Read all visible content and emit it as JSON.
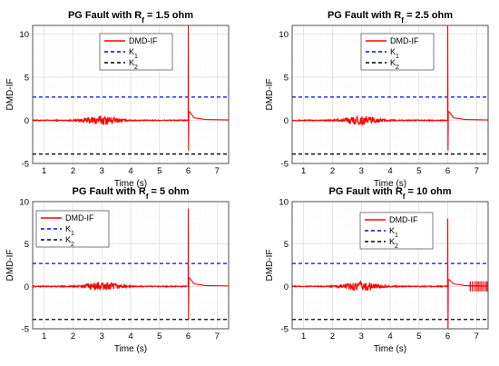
{
  "chart_data": [
    {
      "type": "line",
      "title": "PG Fault with R_f = 1.5 ohm",
      "title_parts": {
        "prefix": "PG Fault with R",
        "sub": "f",
        "suffix": " = 1.5 ohm"
      },
      "xlabel": "Time (s)",
      "ylabel": "DMD-IF",
      "xlim": [
        0.6,
        7.4
      ],
      "ylim": [
        -5,
        11
      ],
      "xticks": [
        "1",
        "2",
        "3",
        "4",
        "5",
        "6",
        "7"
      ],
      "yticks": [
        "-5",
        "0",
        "5",
        "10"
      ],
      "grid": true,
      "legend": "top-center",
      "series": [
        {
          "name": "DMD-IF",
          "color": "#ff0000",
          "style": "solid",
          "fault_time": 6.0,
          "spike_max": 11,
          "spike_min": -3.5,
          "noise_amplitude": 0.5,
          "after_spike_tail": [
            [
              6.05,
              1.0
            ],
            [
              6.2,
              0.3
            ],
            [
              6.6,
              0.1
            ],
            [
              7.4,
              0.05
            ]
          ]
        },
        {
          "name": "K",
          "name_sub": "1",
          "color": "#0000ff",
          "style": "dashed",
          "y": 2.7
        },
        {
          "name": "K",
          "name_sub": "2",
          "color": "#000000",
          "style": "dashed",
          "y": -3.9
        }
      ]
    },
    {
      "type": "line",
      "title": "PG Fault with R_f = 2.5 ohm",
      "title_parts": {
        "prefix": "PG Fault with R",
        "sub": "f",
        "suffix": " = 2.5 ohm"
      },
      "xlabel": "Time (s)",
      "ylabel": "DMD-IF",
      "xlim": [
        0.6,
        7.4
      ],
      "ylim": [
        -5,
        11
      ],
      "xticks": [
        "1",
        "2",
        "3",
        "4",
        "5",
        "6",
        "7"
      ],
      "yticks": [
        "-5",
        "0",
        "5",
        "10"
      ],
      "grid": true,
      "legend": "top-center",
      "series": [
        {
          "name": "DMD-IF",
          "color": "#ff0000",
          "style": "solid",
          "fault_time": 6.0,
          "spike_max": 11,
          "spike_min": -3.5,
          "noise_amplitude": 0.5,
          "after_spike_tail": [
            [
              6.05,
              1.0
            ],
            [
              6.2,
              0.3
            ],
            [
              6.6,
              0.1
            ],
            [
              7.4,
              0.05
            ]
          ]
        },
        {
          "name": "K",
          "name_sub": "1",
          "color": "#0000ff",
          "style": "dashed",
          "y": 2.7
        },
        {
          "name": "K",
          "name_sub": "2",
          "color": "#000000",
          "style": "dashed",
          "y": -3.9
        }
      ]
    },
    {
      "type": "line",
      "title": "PG Fault with R_f = 5 ohm",
      "title_parts": {
        "prefix": "PG Fault with R",
        "sub": "f",
        "suffix": " = 5 ohm"
      },
      "xlabel": "Time (s)",
      "ylabel": "DMD-IF",
      "xlim": [
        0.6,
        7.4
      ],
      "ylim": [
        -5,
        10
      ],
      "xticks": [
        "1",
        "2",
        "3",
        "4",
        "5",
        "6",
        "7"
      ],
      "yticks": [
        "-5",
        "0",
        "5",
        "10"
      ],
      "grid": true,
      "legend": "top-left",
      "series": [
        {
          "name": "DMD-IF",
          "color": "#ff0000",
          "style": "solid",
          "fault_time": 6.0,
          "spike_max": 9.2,
          "spike_min": -3.9,
          "noise_amplitude": 0.5,
          "after_spike_tail": [
            [
              6.05,
              1.0
            ],
            [
              6.2,
              0.3
            ],
            [
              6.6,
              0.1
            ],
            [
              7.4,
              0.05
            ]
          ]
        },
        {
          "name": "K",
          "name_sub": "1",
          "color": "#0000ff",
          "style": "dashed",
          "y": 2.7
        },
        {
          "name": "K",
          "name_sub": "2",
          "color": "#000000",
          "style": "dashed",
          "y": -3.9
        }
      ]
    },
    {
      "type": "line",
      "title": "PG Fault with R_f = 10 ohm",
      "title_parts": {
        "prefix": "PG Fault with R",
        "sub": "f",
        "suffix": " = 10 ohm"
      },
      "xlabel": "Time (s)",
      "ylabel": "DMD-IF",
      "xlim": [
        0.6,
        7.4
      ],
      "ylim": [
        -5,
        10
      ],
      "xticks": [
        "1",
        "2",
        "3",
        "4",
        "5",
        "6",
        "7"
      ],
      "yticks": [
        "-5",
        "0",
        "5",
        "10"
      ],
      "grid": true,
      "legend": "top-center",
      "series": [
        {
          "name": "DMD-IF",
          "color": "#ff0000",
          "style": "solid",
          "fault_time": 6.0,
          "spike_max": 8.0,
          "spike_min": -5.0,
          "noise_amplitude": 0.55,
          "after_spike_tail": [
            [
              6.05,
              0.8
            ],
            [
              6.2,
              0.3
            ],
            [
              6.6,
              0.1
            ],
            [
              7.4,
              0.05
            ]
          ],
          "late_oscillation": {
            "x_start": 6.75,
            "x_end": 7.4,
            "amplitude": 0.6
          }
        },
        {
          "name": "K",
          "name_sub": "1",
          "color": "#0000ff",
          "style": "dashed",
          "y": 2.7
        },
        {
          "name": "K",
          "name_sub": "2",
          "color": "#000000",
          "style": "dashed",
          "y": -3.9
        }
      ]
    }
  ]
}
